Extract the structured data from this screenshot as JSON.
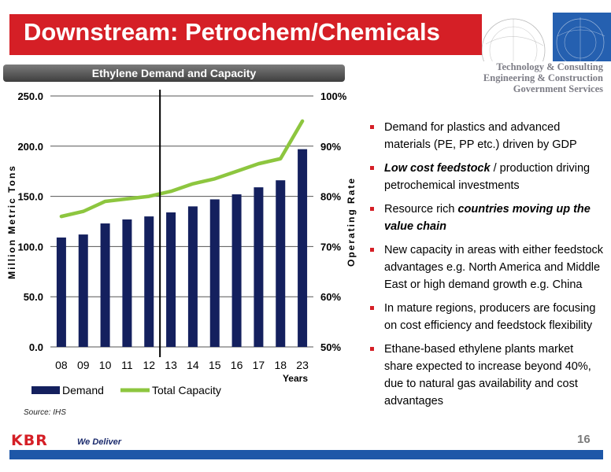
{
  "slide": {
    "title": "Downstream: Petrochem/Chemicals",
    "taglines": [
      "Technology & Consulting",
      "Engineering & Construction",
      "Government Services"
    ],
    "chart_header": "Ethylene Demand and Capacity",
    "source": "Source: IHS",
    "page_number": "16",
    "logo": "KBR",
    "slogan": "We Deliver",
    "colors": {
      "brand_red": "#d51f26",
      "footer_blue": "#1e57a8",
      "bullet_red": "#d51f26"
    }
  },
  "bullets": [
    {
      "parts": [
        {
          "text": "Demand for plastics and advanced materials (PE, PP etc.) driven by GDP"
        }
      ]
    },
    {
      "parts": [
        {
          "text": "Low cost feedstock",
          "style": "bi"
        },
        {
          "text": " / production driving petrochemical investments"
        }
      ]
    },
    {
      "parts": [
        {
          "text": "Resource rich "
        },
        {
          "text": "countries moving up the value chain",
          "style": "bi"
        }
      ]
    },
    {
      "parts": [
        {
          "text": "New capacity in areas with either feedstock advantages e.g. North America and Middle East or high demand growth e.g. China"
        }
      ]
    },
    {
      "parts": [
        {
          "text": "In mature regions, producers are focusing on cost efficiency and feedstock flexibility"
        }
      ]
    },
    {
      "parts": [
        {
          "text": "Ethane-based ethylene plants market share expected to increase beyond 40%, due to natural gas availability and cost advantages"
        }
      ]
    }
  ],
  "chart_data": {
    "type": "bar",
    "title": "",
    "categories": [
      "08",
      "09",
      "10",
      "11",
      "12",
      "13",
      "14",
      "15",
      "16",
      "17",
      "18",
      "23"
    ],
    "xlabel": "Years",
    "ylabel": "Million Metric Tons",
    "y2label": "Operating Rate",
    "ylim": [
      0,
      250
    ],
    "y_ticks": [
      "0.0",
      "50.0",
      "100.0",
      "150.0",
      "200.0",
      "250.0"
    ],
    "y2lim": [
      50,
      100
    ],
    "y2_ticks": [
      "50%",
      "60%",
      "70%",
      "80%",
      "90%",
      "100%"
    ],
    "grid": true,
    "legend_position": "bottom",
    "divider_after_category": "12",
    "series": [
      {
        "name": "Demand",
        "type": "bar",
        "axis": "left",
        "color": "#14205e",
        "values": [
          109,
          112,
          123,
          127,
          130,
          134,
          140,
          147,
          152,
          159,
          166,
          197
        ]
      },
      {
        "name": "Total Capacity",
        "type": "line",
        "axis": "right",
        "color": "#8dc63f",
        "values": [
          76,
          77,
          79,
          79.5,
          80,
          81,
          82.5,
          83.5,
          85,
          86.5,
          87.5,
          95
        ]
      }
    ]
  }
}
